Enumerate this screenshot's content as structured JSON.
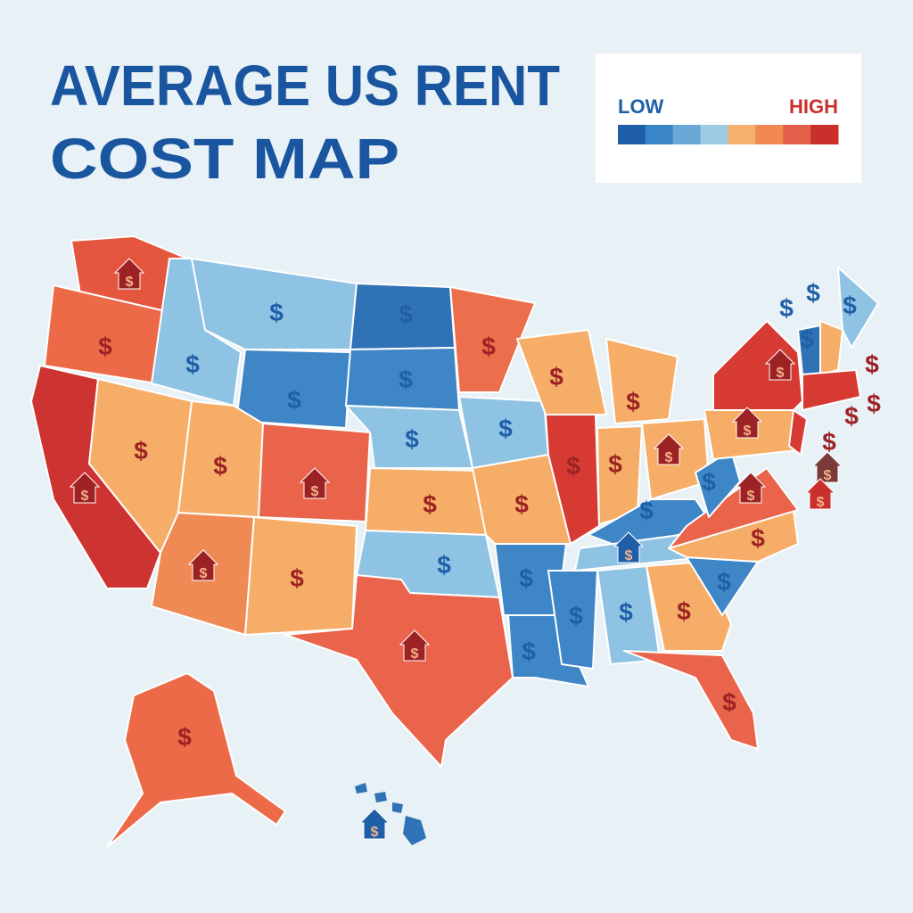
{
  "header": {
    "title_lines": [
      "AVERAGE US RENT",
      "COST MAP"
    ]
  },
  "legend": {
    "low_label": "LOW",
    "high_label": "HIGH",
    "colors": [
      "#1f5fa8",
      "#3a86c8",
      "#6aa8d8",
      "#9ccbe6",
      "#f6b06b",
      "#f08a52",
      "#e5604a",
      "#c9302c"
    ]
  },
  "map": {
    "marker_symbol": "$"
  }
}
